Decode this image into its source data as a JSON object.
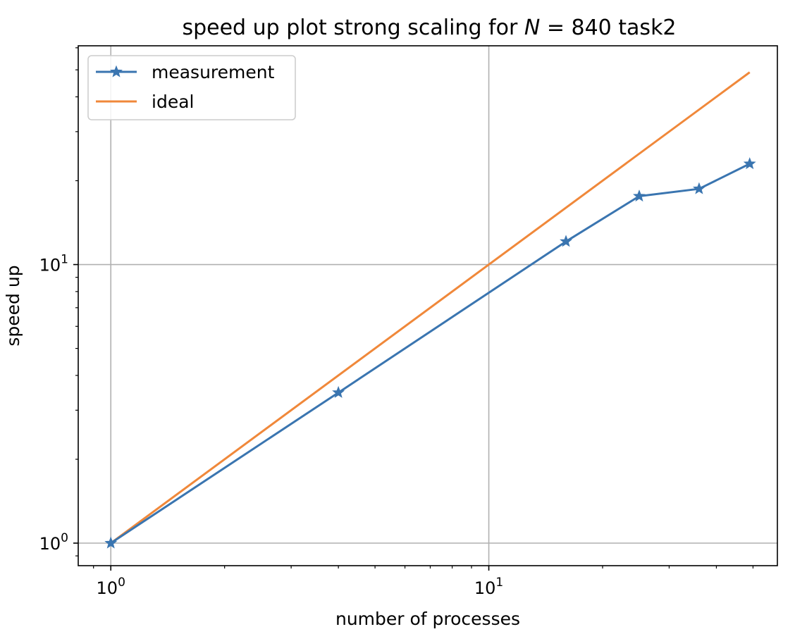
{
  "chart_data": {
    "type": "line",
    "title": "speed up plot strong scaling for N = 840 task2",
    "title_parts": {
      "prefix": "speed up plot strong scaling for ",
      "var": "N",
      "suffix": " = 840 task2"
    },
    "xlabel": "number of processes",
    "ylabel": "speed up",
    "xscale": "log",
    "yscale": "log",
    "xlim": [
      0.82,
      58
    ],
    "ylim": [
      0.83,
      61
    ],
    "grid": true,
    "legend_position": "upper-left",
    "x_ticks": [
      {
        "value": 1,
        "base": "10",
        "exp": "0"
      },
      {
        "value": 10,
        "base": "10",
        "exp": "1"
      }
    ],
    "y_ticks": [
      {
        "value": 1,
        "base": "10",
        "exp": "0"
      },
      {
        "value": 10,
        "base": "10",
        "exp": "1"
      }
    ],
    "series": [
      {
        "name": "measurement",
        "color": "#3a75b0",
        "marker": "star",
        "x": [
          1,
          4,
          16,
          25,
          36,
          49
        ],
        "y": [
          1,
          3.47,
          12.1,
          17.6,
          18.7,
          23.0
        ]
      },
      {
        "name": "ideal",
        "color": "#f0883a",
        "marker": "none",
        "x": [
          1,
          49
        ],
        "y": [
          1,
          49
        ]
      }
    ]
  }
}
